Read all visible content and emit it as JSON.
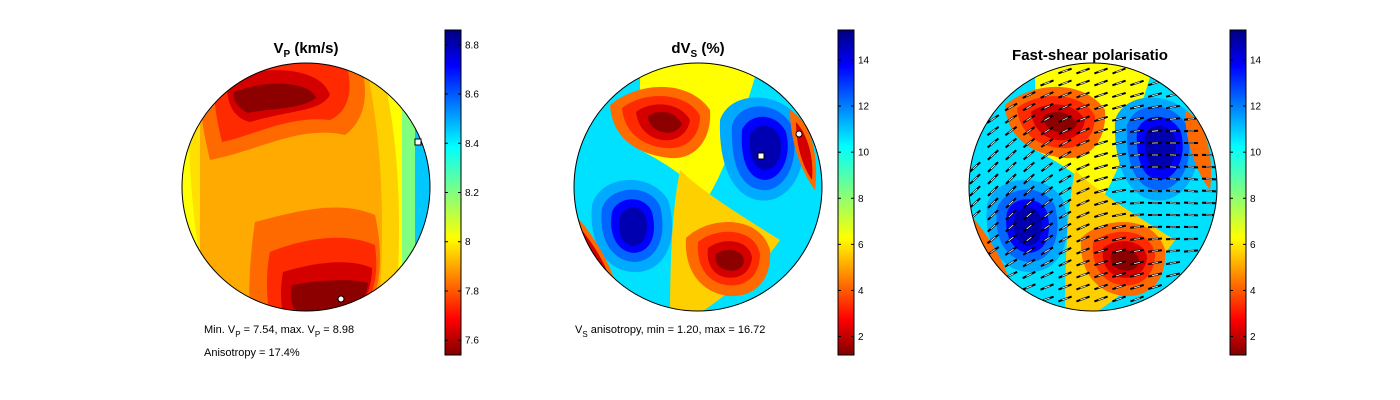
{
  "chart_data": [
    {
      "type": "heatmap",
      "title": "V",
      "title_subscript": "P",
      "title_suffix": " (km/s)",
      "colormap": "jet",
      "colorbar_range": [
        7.54,
        8.86
      ],
      "colorbar_ticks": [
        "8.8",
        "8.6",
        "8.4",
        "8.2",
        "8",
        "7.8",
        "7.6"
      ],
      "tick_values": [
        8.8,
        8.6,
        8.4,
        8.2,
        8.0,
        7.8,
        7.6
      ],
      "markers": [
        {
          "shape": "square",
          "meaning": "max"
        },
        {
          "shape": "circle",
          "meaning": "min"
        }
      ],
      "notes": {
        "min_prefix": "Min. V",
        "min_sub": "P",
        "min_text": " =  7.54, max. V",
        "max_sub": "P",
        "max_text": " =  8.98",
        "anisotropy": "Anisotropy = 17.4%"
      },
      "data": {
        "min": 7.54,
        "max": 8.98,
        "anisotropy_percent": 17.4
      }
    },
    {
      "type": "heatmap",
      "title": "dV",
      "title_subscript": "S",
      "title_suffix": " (%)",
      "colormap": "jet",
      "colorbar_range": [
        1.2,
        15.3
      ],
      "colorbar_ticks": [
        "14",
        "12",
        "10",
        "8",
        "6",
        "4",
        "2"
      ],
      "tick_values": [
        14,
        12,
        10,
        8,
        6,
        4,
        2
      ],
      "markers": [
        {
          "shape": "square",
          "meaning": "max"
        },
        {
          "shape": "circle",
          "meaning": "min"
        }
      ],
      "notes": {
        "line_prefix": "V",
        "line_sub": "S",
        "line_text": " anisotropy, min =  1.20, max = 16.72"
      },
      "data": {
        "min": 1.2,
        "max": 16.72
      }
    },
    {
      "type": "heatmap",
      "title": "Fast-shear polarisatio",
      "colormap": "jet",
      "colorbar_range": [
        1.2,
        15.3
      ],
      "colorbar_ticks": [
        "14",
        "12",
        "10",
        "8",
        "6",
        "4",
        "2"
      ],
      "tick_values": [
        14,
        12,
        10,
        8,
        6,
        4,
        2
      ],
      "overlay": "polarisation-ticks"
    }
  ]
}
